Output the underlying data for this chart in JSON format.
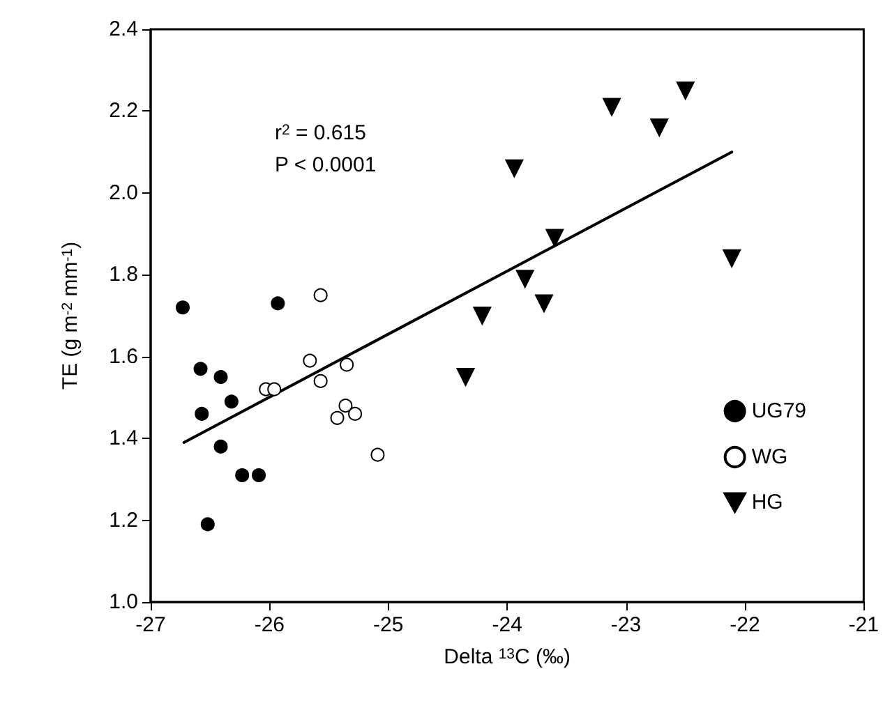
{
  "chart_data": {
    "type": "scatter",
    "xlabel": "Delta $^{13}$C (‰)",
    "ylabel": "TE (g m$^{-2}$ mm$^{-1}$)",
    "annotations": [
      "r$^{2}$ = 0.615",
      "P < 0.0001"
    ],
    "xlim": [
      -27,
      -21
    ],
    "xticks": [
      -27,
      -26,
      -25,
      -24,
      -23,
      -22,
      -21
    ],
    "ylim": [
      1.0,
      2.4
    ],
    "yticks": [
      {
        "value": 1.0,
        "label": "1.0"
      },
      {
        "value": 1.2,
        "label": "1.2"
      },
      {
        "value": 1.4,
        "label": "1.4"
      },
      {
        "value": 1.6,
        "label": "1.6"
      },
      {
        "value": 1.8,
        "label": "1.8"
      },
      {
        "value": 2.0,
        "label": "2.0"
      },
      {
        "value": 2.2,
        "label": "2.2"
      },
      {
        "value": 2.4,
        "label": "2.4"
      }
    ],
    "grid": false,
    "legend": "bottom right",
    "series": [
      {
        "name": "UG79",
        "color": "#000000",
        "marker": "circle",
        "x": [
          -26.73,
          -26.58,
          -26.41,
          -26.57,
          -26.32,
          -26.41,
          -26.52,
          -26.23,
          -26.09,
          -25.93
        ],
        "values": [
          1.72,
          1.57,
          1.55,
          1.46,
          1.49,
          1.38,
          1.19,
          1.31,
          1.31,
          1.73
        ]
      },
      {
        "name": "WG",
        "color": "#ffffff",
        "marker": "circle",
        "x": [
          -25.57,
          -25.66,
          -26.03,
          -25.96,
          -25.57,
          -25.35,
          -25.36,
          -25.43,
          -25.28,
          -25.09
        ],
        "values": [
          1.75,
          1.59,
          1.52,
          1.52,
          1.54,
          1.58,
          1.48,
          1.45,
          1.46,
          1.36
        ]
      },
      {
        "name": "HG",
        "color": "#000000",
        "marker": "triangle",
        "x": [
          -22.5,
          -23.12,
          -22.72,
          -23.94,
          -23.6,
          -22.11,
          -23.85,
          -23.69,
          -24.21,
          -24.35
        ],
        "values": [
          2.25,
          2.21,
          2.16,
          2.06,
          1.89,
          1.84,
          1.79,
          1.73,
          1.7,
          1.55
        ]
      },
      {
        "type": "line",
        "color": "#000000",
        "marker": "none",
        "line_style": "solid",
        "x": [
          -26.72,
          -22.11
        ],
        "values": [
          1.39,
          2.1
        ]
      }
    ]
  }
}
